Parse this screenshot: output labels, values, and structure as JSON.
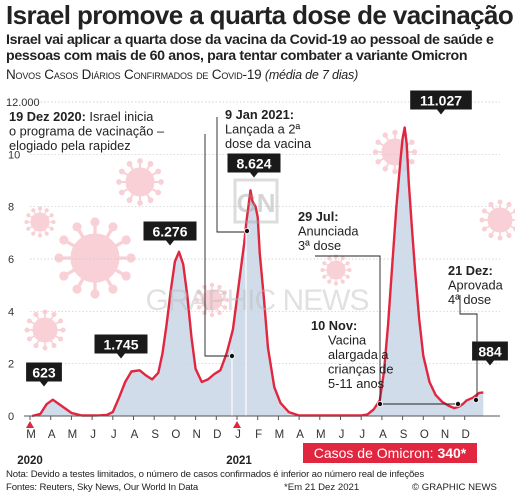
{
  "title": "Israel promove a quarta dose de vacinação",
  "subtitle": "Israel vai aplicar a quarta dose da vacina da Covid-19 ao pessoal de saúde e pessoas com mais de 60 anos, para tentar combater a variante Omicron",
  "chart_title": {
    "main": "Novos Casos Diários Confirmados de Covid-19",
    "note": "(média de 7 dias)"
  },
  "omicron": {
    "label": "Casos de Omicron:",
    "value": "340*"
  },
  "footer": {
    "note": "Nota: Devido a testes limitados, o número de casos confirmados é inferior ao número real de infeções",
    "sources": "Fontes: Reuters, Sky News, Our World In Data",
    "date_note": "*Em 21 Dez 2021",
    "brand": "© GRAPHIC NEWS"
  },
  "watermark": {
    "logo": "GN",
    "text": "GRAPHIC NEWS"
  },
  "colors": {
    "line": "#e1263f",
    "fill": "#c9d6e8",
    "callout": "#1a1a1a",
    "virus": "#f8d0d6"
  },
  "chart_data": {
    "type": "area",
    "unit_label": "12.000",
    "x_ticks": [
      "M",
      "A",
      "M",
      "J",
      "J",
      "A",
      "S",
      "O",
      "N",
      "D",
      "J",
      "F",
      "M",
      "A",
      "M",
      "J",
      "J",
      "A",
      "S",
      "O",
      "N",
      "D"
    ],
    "year_labels": [
      {
        "tick_index": 0,
        "label": "2020"
      },
      {
        "tick_index": 10,
        "label": "2021"
      }
    ],
    "y_ticks": [
      {
        "value": 0,
        "label": "0"
      },
      {
        "value": 2000,
        "label": "2"
      },
      {
        "value": 4000,
        "label": "4"
      },
      {
        "value": 6000,
        "label": "6"
      },
      {
        "value": 8000,
        "label": "8"
      },
      {
        "value": 10000,
        "label": "10"
      },
      {
        "value": 12000,
        "label": "12.000"
      }
    ],
    "ylim": [
      0,
      12000
    ],
    "x_months": [
      0.1,
      0.5,
      0.8,
      1.1,
      1.5,
      2.0,
      2.5,
      3.0,
      3.4,
      3.7,
      4.0,
      4.3,
      4.6,
      4.9,
      5.3,
      5.6,
      5.9,
      6.2,
      6.4,
      6.6,
      6.8,
      7.0,
      7.2,
      7.4,
      7.6,
      7.8,
      8.0,
      8.3,
      8.6,
      8.9,
      9.2,
      9.5,
      9.8,
      10.0,
      10.2,
      10.35,
      10.45,
      10.55,
      10.65,
      10.75,
      10.9,
      11.0,
      11.1,
      11.3,
      11.5,
      11.8,
      12.1,
      12.5,
      13.0,
      13.5,
      14.0,
      14.5,
      15.0,
      15.5,
      16.0,
      16.3,
      16.6,
      16.9,
      17.1,
      17.3,
      17.5,
      17.7,
      17.9,
      18.0,
      18.1,
      18.2,
      18.3,
      18.45,
      18.6,
      18.8,
      19.0,
      19.3,
      19.6,
      19.9,
      20.2,
      20.5,
      20.7,
      20.9,
      21.1,
      21.4,
      21.7,
      21.9
    ],
    "y_values": [
      0,
      80,
      450,
      623,
      400,
      120,
      20,
      20,
      25,
      40,
      150,
      700,
      1300,
      1700,
      1745,
      1550,
      1400,
      1650,
      2400,
      3500,
      4800,
      5900,
      6276,
      5800,
      4600,
      3000,
      1800,
      1300,
      1400,
      1600,
      1750,
      2400,
      3300,
      4500,
      5700,
      6600,
      7400,
      8000,
      8624,
      8200,
      8000,
      7600,
      6200,
      4500,
      2600,
      1100,
      500,
      150,
      20,
      20,
      20,
      20,
      20,
      20,
      20,
      60,
      250,
      600,
      1700,
      3500,
      5800,
      8000,
      9800,
      10600,
      11027,
      10400,
      8900,
      7200,
      5600,
      3700,
      2300,
      1300,
      800,
      550,
      400,
      300,
      350,
      450,
      600,
      700,
      884,
      900
    ],
    "peaks": [
      {
        "label": "623",
        "month": 0.8,
        "value": 623
      },
      {
        "label": "1.745",
        "month": 5.3,
        "value": 1745
      },
      {
        "label": "6.276",
        "month": 7.2,
        "value": 6276
      },
      {
        "label": "8.624",
        "month": 10.65,
        "value": 8624
      },
      {
        "label": "11.027",
        "month": 18.1,
        "value": 11027
      },
      {
        "label": "884",
        "month": 21.7,
        "value": 884
      }
    ],
    "annotations": [
      {
        "id": "a1",
        "date": "19 Dez 2020:",
        "text": [
          "Israel inicia",
          "o programa de vacinação –",
          "elogiado pela rapidez"
        ]
      },
      {
        "id": "a2",
        "date": "9 Jan 2021:",
        "text": [
          "Lançada a 2ª",
          "dose da vacina"
        ]
      },
      {
        "id": "a3",
        "date": "29 Jul:",
        "text": [
          "Anunciada",
          "3ª dose"
        ]
      },
      {
        "id": "a4",
        "date": "10 Nov:",
        "text": [
          "Vacina",
          "alargada a",
          "crianças de",
          "5-11 anos"
        ]
      },
      {
        "id": "a5",
        "date": "21 Dez:",
        "text": [
          "Aprovada",
          "4ª dose"
        ]
      }
    ]
  }
}
